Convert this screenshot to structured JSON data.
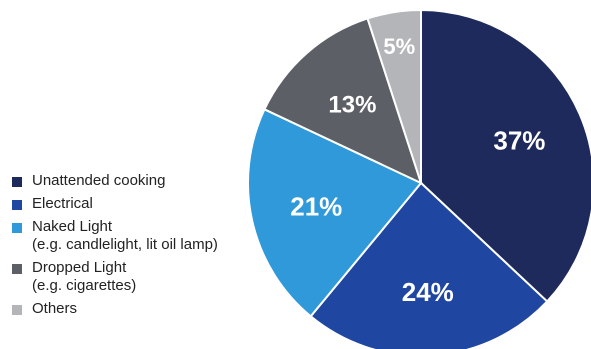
{
  "chart_data": {
    "type": "pie",
    "title": "",
    "slices": [
      {
        "name": "Unattended cooking",
        "subtitle": "",
        "value": 37,
        "label": "37%",
        "color": "#1f2a5c"
      },
      {
        "name": "Electrical",
        "subtitle": "",
        "value": 24,
        "label": "24%",
        "color": "#1f46a0"
      },
      {
        "name": "Naked Light",
        "subtitle": "(e.g. candlelight, lit oil lamp)",
        "value": 21,
        "label": "21%",
        "color": "#2f99d9"
      },
      {
        "name": "Dropped Light",
        "subtitle": "(e.g. cigarettes)",
        "value": 13,
        "label": "13%",
        "color": "#5c5f66"
      },
      {
        "name": "Others",
        "subtitle": "",
        "value": 5,
        "label": "5%",
        "color": "#b3b5b8"
      }
    ],
    "legend_position": "left",
    "start_angle": "12 o'clock",
    "direction": "clockwise"
  }
}
